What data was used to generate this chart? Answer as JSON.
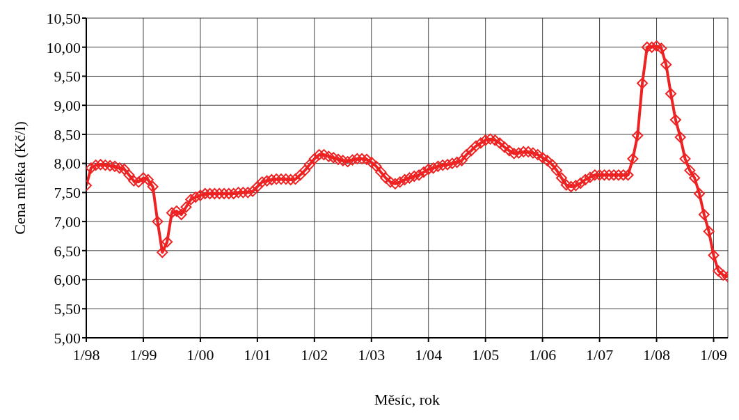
{
  "chart_data": {
    "type": "line",
    "xlabel": "Měsíc, rok",
    "ylabel": "Cena mléka (Kč/l)",
    "x": [
      "1998-01",
      "1998-02",
      "1998-03",
      "1998-04",
      "1998-05",
      "1998-06",
      "1998-07",
      "1998-08",
      "1998-09",
      "1998-10",
      "1998-11",
      "1998-12",
      "1999-01",
      "1999-02",
      "1999-03",
      "1999-04",
      "1999-05",
      "1999-06",
      "1999-07",
      "1999-08",
      "1999-09",
      "1999-10",
      "1999-11",
      "1999-12",
      "2000-01",
      "2000-02",
      "2000-03",
      "2000-04",
      "2000-05",
      "2000-06",
      "2000-07",
      "2000-08",
      "2000-09",
      "2000-10",
      "2000-11",
      "2000-12",
      "2001-01",
      "2001-02",
      "2001-03",
      "2001-04",
      "2001-05",
      "2001-06",
      "2001-07",
      "2001-08",
      "2001-09",
      "2001-10",
      "2001-11",
      "2001-12",
      "2002-01",
      "2002-02",
      "2002-03",
      "2002-04",
      "2002-05",
      "2002-06",
      "2002-07",
      "2002-08",
      "2002-09",
      "2002-10",
      "2002-11",
      "2002-12",
      "2003-01",
      "2003-02",
      "2003-03",
      "2003-04",
      "2003-05",
      "2003-06",
      "2003-07",
      "2003-08",
      "2003-09",
      "2003-10",
      "2003-11",
      "2003-12",
      "2004-01",
      "2004-02",
      "2004-03",
      "2004-04",
      "2004-05",
      "2004-06",
      "2004-07",
      "2004-08",
      "2004-09",
      "2004-10",
      "2004-11",
      "2004-12",
      "2005-01",
      "2005-02",
      "2005-03",
      "2005-04",
      "2005-05",
      "2005-06",
      "2005-07",
      "2005-08",
      "2005-09",
      "2005-10",
      "2005-11",
      "2005-12",
      "2006-01",
      "2006-02",
      "2006-03",
      "2006-04",
      "2006-05",
      "2006-06",
      "2006-07",
      "2006-08",
      "2006-09",
      "2006-10",
      "2006-11",
      "2006-12",
      "2007-01",
      "2007-02",
      "2007-03",
      "2007-04",
      "2007-05",
      "2007-06",
      "2007-07",
      "2007-08",
      "2007-09",
      "2007-10",
      "2007-11",
      "2007-12",
      "2008-01",
      "2008-02",
      "2008-03",
      "2008-04",
      "2008-05",
      "2008-06",
      "2008-07",
      "2008-08",
      "2008-09",
      "2008-10",
      "2008-11",
      "2008-12",
      "2009-01",
      "2009-02",
      "2009-03",
      "2009-04"
    ],
    "series": [
      {
        "color": "#ee2222",
        "values": [
          7.62,
          7.92,
          7.97,
          7.98,
          7.97,
          7.96,
          7.95,
          7.92,
          7.9,
          7.8,
          7.7,
          7.68,
          7.75,
          7.72,
          7.6,
          7.0,
          6.47,
          6.65,
          7.15,
          7.18,
          7.12,
          7.25,
          7.38,
          7.42,
          7.45,
          7.48,
          7.48,
          7.48,
          7.48,
          7.48,
          7.48,
          7.48,
          7.5,
          7.5,
          7.5,
          7.52,
          7.6,
          7.68,
          7.7,
          7.72,
          7.73,
          7.73,
          7.73,
          7.72,
          7.73,
          7.8,
          7.88,
          7.98,
          8.08,
          8.15,
          8.15,
          8.12,
          8.1,
          8.07,
          8.05,
          8.03,
          8.06,
          8.08,
          8.08,
          8.07,
          8.02,
          7.95,
          7.85,
          7.75,
          7.68,
          7.65,
          7.68,
          7.72,
          7.75,
          7.78,
          7.8,
          7.85,
          7.9,
          7.92,
          7.95,
          7.97,
          7.98,
          8.0,
          8.02,
          8.05,
          8.15,
          8.22,
          8.3,
          8.35,
          8.4,
          8.42,
          8.4,
          8.35,
          8.28,
          8.22,
          8.17,
          8.18,
          8.2,
          8.2,
          8.18,
          8.15,
          8.1,
          8.05,
          7.98,
          7.88,
          7.75,
          7.63,
          7.6,
          7.62,
          7.66,
          7.72,
          7.76,
          7.8,
          7.8,
          7.8,
          7.8,
          7.8,
          7.8,
          7.8,
          7.8,
          8.08,
          8.48,
          9.38,
          10.0,
          10.0,
          10.02,
          9.98,
          9.7,
          9.2,
          8.75,
          8.45,
          8.08,
          7.88,
          7.75,
          7.48,
          7.12,
          6.83,
          6.42,
          6.15,
          6.08,
          6.05
        ]
      }
    ],
    "xlim": [
      "1998-01",
      "2009-04"
    ],
    "xticks": [
      {
        "value": "1998-01",
        "label": "1/98"
      },
      {
        "value": "1999-01",
        "label": "1/99"
      },
      {
        "value": "2000-01",
        "label": "1/00"
      },
      {
        "value": "2001-01",
        "label": "1/01"
      },
      {
        "value": "2002-01",
        "label": "1/02"
      },
      {
        "value": "2003-01",
        "label": "1/03"
      },
      {
        "value": "2004-01",
        "label": "1/04"
      },
      {
        "value": "2005-01",
        "label": "1/05"
      },
      {
        "value": "2006-01",
        "label": "1/06"
      },
      {
        "value": "2007-01",
        "label": "1/07"
      },
      {
        "value": "2008-01",
        "label": "1/08"
      },
      {
        "value": "2009-01",
        "label": "1/09"
      }
    ],
    "ylim": [
      5,
      10.5
    ],
    "yticks": [
      {
        "value": 5,
        "label": "5,00"
      },
      {
        "value": 5.5,
        "label": "5,50"
      },
      {
        "value": 6,
        "label": "6,00"
      },
      {
        "value": 6.5,
        "label": "6,50"
      },
      {
        "value": 7,
        "label": "7,00"
      },
      {
        "value": 7.5,
        "label": "7,50"
      },
      {
        "value": 8,
        "label": "8,00"
      },
      {
        "value": 8.5,
        "label": "8,50"
      },
      {
        "value": 9,
        "label": "9,00"
      },
      {
        "value": 9.5,
        "label": "9,50"
      },
      {
        "value": 10,
        "label": "10,00"
      },
      {
        "value": 10.5,
        "label": "10,50"
      }
    ],
    "grid": true,
    "marker": "diamond",
    "line_style": "solid",
    "legend": false
  }
}
